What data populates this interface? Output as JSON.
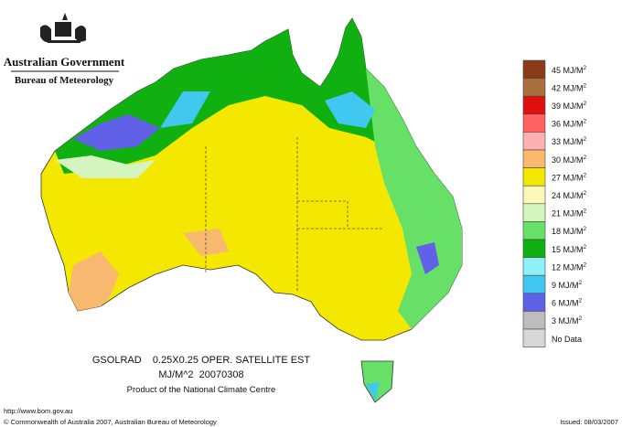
{
  "header": {
    "title": "Australian Government",
    "subtitle": "Bureau of Meteorology"
  },
  "legend": [
    {
      "label": "45 MJ/M",
      "sup": "2",
      "color": "#8b3a1a"
    },
    {
      "label": "42 MJ/M",
      "sup": "2",
      "color": "#a8703c"
    },
    {
      "label": "39 MJ/M",
      "sup": "2",
      "color": "#e01010"
    },
    {
      "label": "36 MJ/M",
      "sup": "2",
      "color": "#ff6060"
    },
    {
      "label": "33 MJ/M",
      "sup": "2",
      "color": "#ffb0b0"
    },
    {
      "label": "30 MJ/M",
      "sup": "2",
      "color": "#f8b870"
    },
    {
      "label": "27 MJ/M",
      "sup": "2",
      "color": "#f5e800"
    },
    {
      "label": "24 MJ/M",
      "sup": "2",
      "color": "#fbf8b8"
    },
    {
      "label": "21 MJ/M",
      "sup": "2",
      "color": "#d4f4c0"
    },
    {
      "label": "18 MJ/M",
      "sup": "2",
      "color": "#66e066"
    },
    {
      "label": "15 MJ/M",
      "sup": "2",
      "color": "#10b010"
    },
    {
      "label": "12 MJ/M",
      "sup": "2",
      "color": "#90f0f8"
    },
    {
      "label": "9 MJ/M",
      "sup": "2",
      "color": "#40c8f0"
    },
    {
      "label": "6 MJ/M",
      "sup": "2",
      "color": "#6060e8"
    },
    {
      "label": "3 MJ/M",
      "sup": "2",
      "color": "#bdbdbd"
    },
    {
      "label": "No Data",
      "color": "#d8d8d8"
    }
  ],
  "caption": {
    "line1": "GSOLRAD    0.25X0.25 OPER. SATELLITE EST",
    "line2": "MJ/M^2  20070308",
    "line3": "Product of the National Climate Centre"
  },
  "footer": {
    "url": "http://www.bom.gov.au",
    "copyright": "© Commonwealth of Australia 2007, Australian Bureau of Meteorology",
    "issued": "Issued: 08/03/2007"
  }
}
